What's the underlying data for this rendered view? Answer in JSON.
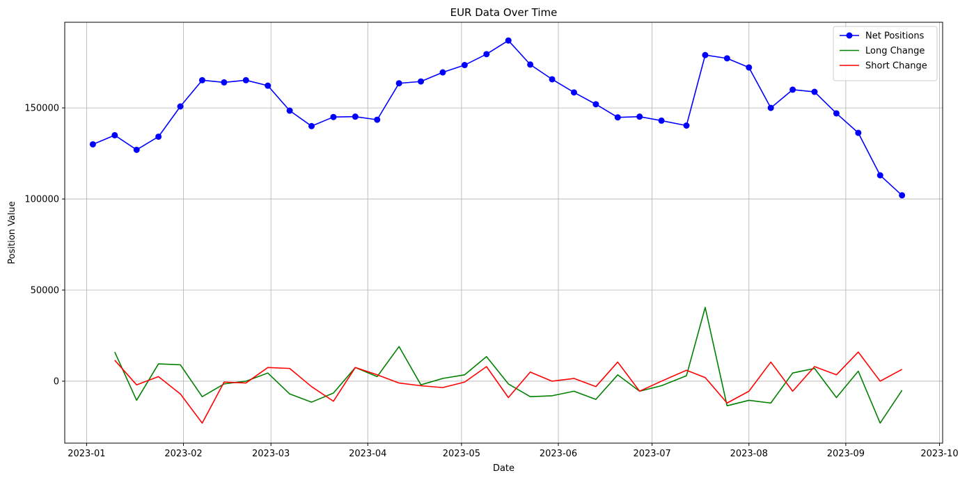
{
  "chart_data": {
    "type": "line",
    "title": "EUR Data Over Time",
    "xlabel": "Date",
    "ylabel": "Position Value",
    "xlim": [
      "2022-12-25",
      "2023-10-02"
    ],
    "ylim": [
      -34000,
      197000
    ],
    "x_ticks": [
      "2023-01",
      "2023-02",
      "2023-03",
      "2023-04",
      "2023-05",
      "2023-06",
      "2023-07",
      "2023-08",
      "2023-09",
      "2023-10"
    ],
    "y_ticks": [
      0,
      50000,
      100000,
      150000
    ],
    "grid": true,
    "legend_position": "top-right",
    "series": [
      {
        "name": "Net Positions",
        "color": "#0000ff",
        "marker": "circle",
        "points": [
          [
            "2023-01-03",
            130000
          ],
          [
            "2023-01-10",
            135000
          ],
          [
            "2023-01-17",
            127000
          ],
          [
            "2023-01-24",
            134200
          ],
          [
            "2023-01-31",
            150800
          ],
          [
            "2023-02-07",
            165200
          ],
          [
            "2023-02-14",
            164000
          ],
          [
            "2023-02-21",
            165200
          ],
          [
            "2023-02-28",
            162200
          ],
          [
            "2023-03-07",
            148500
          ],
          [
            "2023-03-14",
            140000
          ],
          [
            "2023-03-21",
            145000
          ],
          [
            "2023-03-28",
            145200
          ],
          [
            "2023-04-04",
            143500
          ],
          [
            "2023-04-11",
            163500
          ],
          [
            "2023-04-18",
            164500
          ],
          [
            "2023-04-25",
            169500
          ],
          [
            "2023-05-02",
            173500
          ],
          [
            "2023-05-09",
            179500
          ],
          [
            "2023-05-16",
            187000
          ],
          [
            "2023-05-23",
            173800
          ],
          [
            "2023-05-30",
            165700
          ],
          [
            "2023-06-06",
            158500
          ],
          [
            "2023-06-13",
            152000
          ],
          [
            "2023-06-20",
            144800
          ],
          [
            "2023-06-27",
            145200
          ],
          [
            "2023-07-04",
            143000
          ],
          [
            "2023-07-12",
            140300
          ],
          [
            "2023-07-18",
            179000
          ],
          [
            "2023-07-25",
            177200
          ],
          [
            "2023-08-01",
            172200
          ],
          [
            "2023-08-08",
            150000
          ],
          [
            "2023-08-15",
            160000
          ],
          [
            "2023-08-22",
            158800
          ],
          [
            "2023-08-29",
            147000
          ],
          [
            "2023-09-05",
            136300
          ],
          [
            "2023-09-12",
            113000
          ],
          [
            "2023-09-19",
            102000
          ]
        ]
      },
      {
        "name": "Long Change",
        "color": "#008000",
        "marker": "none",
        "points": [
          [
            "2023-01-10",
            16000
          ],
          [
            "2023-01-17",
            -10500
          ],
          [
            "2023-01-24",
            9500
          ],
          [
            "2023-01-31",
            9000
          ],
          [
            "2023-02-07",
            -8500
          ],
          [
            "2023-02-14",
            -1500
          ],
          [
            "2023-02-21",
            0
          ],
          [
            "2023-02-28",
            4500
          ],
          [
            "2023-03-07",
            -7000
          ],
          [
            "2023-03-14",
            -11500
          ],
          [
            "2023-03-21",
            -6500
          ],
          [
            "2023-03-28",
            7500
          ],
          [
            "2023-04-04",
            2500
          ],
          [
            "2023-04-11",
            19000
          ],
          [
            "2023-04-18",
            -2000
          ],
          [
            "2023-04-25",
            1500
          ],
          [
            "2023-05-02",
            3500
          ],
          [
            "2023-05-09",
            13500
          ],
          [
            "2023-05-16",
            -1500
          ],
          [
            "2023-05-23",
            -8500
          ],
          [
            "2023-05-30",
            -8000
          ],
          [
            "2023-06-06",
            -5500
          ],
          [
            "2023-06-13",
            -10000
          ],
          [
            "2023-06-20",
            3500
          ],
          [
            "2023-06-27",
            -5500
          ],
          [
            "2023-07-04",
            -2500
          ],
          [
            "2023-07-12",
            3000
          ],
          [
            "2023-07-18",
            40500
          ],
          [
            "2023-07-25",
            -13500
          ],
          [
            "2023-08-01",
            -10500
          ],
          [
            "2023-08-08",
            -12000
          ],
          [
            "2023-08-15",
            4500
          ],
          [
            "2023-08-22",
            7000
          ],
          [
            "2023-08-29",
            -9000
          ],
          [
            "2023-09-05",
            5500
          ],
          [
            "2023-09-12",
            -23000
          ],
          [
            "2023-09-19",
            -5000
          ]
        ]
      },
      {
        "name": "Short Change",
        "color": "#ff0000",
        "marker": "none",
        "points": [
          [
            "2023-01-10",
            11500
          ],
          [
            "2023-01-17",
            -2000
          ],
          [
            "2023-01-24",
            2500
          ],
          [
            "2023-01-31",
            -7000
          ],
          [
            "2023-02-07",
            -23000
          ],
          [
            "2023-02-14",
            -500
          ],
          [
            "2023-02-21",
            -1000
          ],
          [
            "2023-02-28",
            7500
          ],
          [
            "2023-03-07",
            7000
          ],
          [
            "2023-03-14",
            -3000
          ],
          [
            "2023-03-21",
            -11000
          ],
          [
            "2023-03-28",
            7500
          ],
          [
            "2023-04-04",
            3500
          ],
          [
            "2023-04-11",
            -1000
          ],
          [
            "2023-04-18",
            -2500
          ],
          [
            "2023-04-25",
            -3500
          ],
          [
            "2023-05-02",
            -500
          ],
          [
            "2023-05-09",
            8000
          ],
          [
            "2023-05-16",
            -9000
          ],
          [
            "2023-05-23",
            5000
          ],
          [
            "2023-05-30",
            0
          ],
          [
            "2023-06-06",
            1500
          ],
          [
            "2023-06-13",
            -3000
          ],
          [
            "2023-06-20",
            10500
          ],
          [
            "2023-06-27",
            -5500
          ],
          [
            "2023-07-04",
            0
          ],
          [
            "2023-07-12",
            6000
          ],
          [
            "2023-07-18",
            2000
          ],
          [
            "2023-07-25",
            -12000
          ],
          [
            "2023-08-01",
            -5500
          ],
          [
            "2023-08-08",
            10500
          ],
          [
            "2023-08-15",
            -5500
          ],
          [
            "2023-08-22",
            8000
          ],
          [
            "2023-08-29",
            3500
          ],
          [
            "2023-09-05",
            16000
          ],
          [
            "2023-09-12",
            0
          ],
          [
            "2023-09-19",
            6500
          ]
        ]
      }
    ]
  }
}
